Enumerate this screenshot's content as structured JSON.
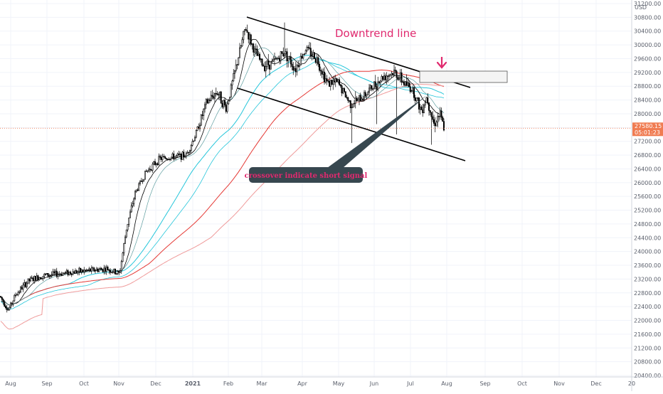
{
  "chart_data": {
    "type": "candlestick",
    "currency": "USD",
    "x_ticks": [
      "Aug",
      "Sep",
      "Oct",
      "Nov",
      "Dec",
      "2021",
      "Feb",
      "Mar",
      "Apr",
      "May",
      "Jun",
      "Jul",
      "Aug",
      "Sep",
      "Oct",
      "Nov",
      "Dec",
      "20"
    ],
    "y_ticks": [
      "31200.00",
      "30800.00",
      "30400.00",
      "30000.00",
      "29600.00",
      "29200.00",
      "28800.00",
      "28400.00",
      "28000.00",
      "27600.00",
      "27200.00",
      "26800.00",
      "26400.00",
      "26000.00",
      "25600.00",
      "25200.00",
      "24800.00",
      "24400.00",
      "24000.00",
      "23600.00",
      "23200.00",
      "22800.00",
      "22400.00",
      "22000.00",
      "21600.00",
      "21200.00",
      "20800.00",
      "20400.00"
    ],
    "ylim": [
      20350,
      31300
    ],
    "grid": true,
    "last_price": "27580.15",
    "countdown": "05:01:23",
    "annotations": {
      "trend_label": "Downtrend line",
      "callout": "crossover indicate short signal",
      "arrow": "down"
    },
    "colors": {
      "up": "#26a69a",
      "down": "#ef5350",
      "candle": "#000000",
      "ma_fast": "#000000",
      "ma_teal": "#26c6da",
      "ma_red": "#e53935",
      "ma_red_light": "#ef9a9a",
      "annotation": "#e0296e",
      "price_tag": "#f07c52",
      "callout_bg": "#37474f"
    }
  }
}
